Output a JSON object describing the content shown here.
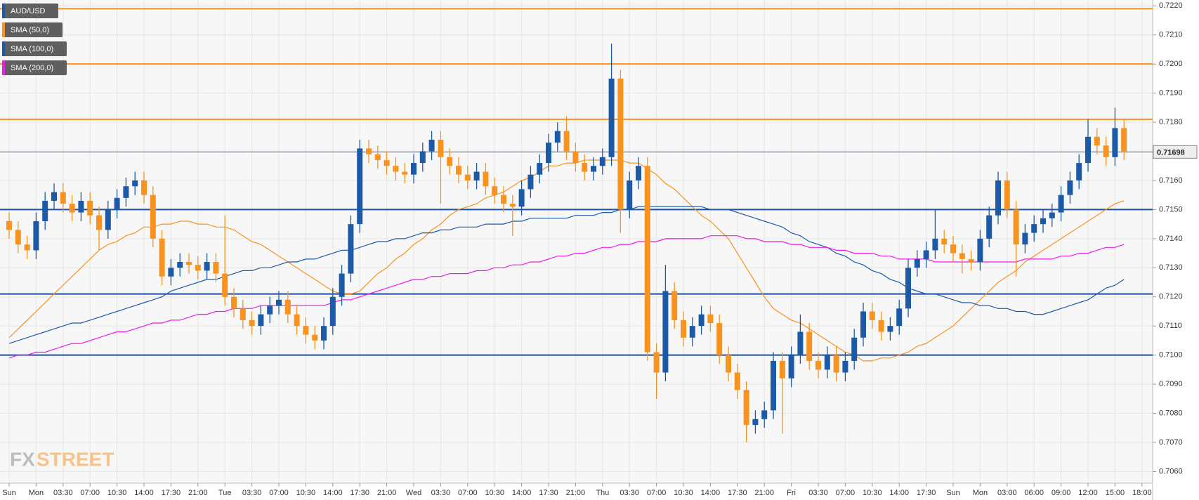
{
  "chart_data": {
    "type": "candlestick",
    "categories": [
      "Sun",
      null,
      null,
      "Mon",
      null,
      null,
      "03:30",
      null,
      null,
      "07:00",
      null,
      null,
      "10:30",
      null,
      null,
      "14:00",
      null,
      null,
      "17:30",
      null,
      null,
      "21:00",
      null,
      null,
      "Tue",
      null,
      null,
      "03:30",
      null,
      null,
      "07:00",
      null,
      null,
      "10:30",
      null,
      null,
      "14:00",
      null,
      null,
      "17:30",
      null,
      null,
      "21:00",
      null,
      null,
      "Wed",
      null,
      null,
      "03:30",
      null,
      null,
      "07:00",
      null,
      null,
      "10:30",
      null,
      null,
      "14:00",
      null,
      null,
      "17:30",
      null,
      null,
      "21:00",
      null,
      null,
      "Thu",
      null,
      null,
      "03:30",
      null,
      null,
      "07:00",
      null,
      null,
      "10:30",
      null,
      null,
      "14:00",
      null,
      null,
      "17:30",
      null,
      null,
      "21:00",
      null,
      null,
      "Fri",
      null,
      null,
      "03:30",
      null,
      null,
      "07:00",
      null,
      null,
      "10:30",
      null,
      null,
      "14:00",
      null,
      null,
      "17:30",
      null,
      null,
      "Sun",
      null,
      null,
      "Mon",
      null,
      null,
      "03:00",
      null,
      null,
      "06:00",
      null,
      null,
      "09:00",
      null,
      null,
      "12:00",
      null,
      null,
      "15:00",
      null,
      null,
      "18:00"
    ],
    "candles": {
      "name": "AUD/USD",
      "color": "#1c5aa8",
      "up_color": "#1c5aa8",
      "down_color": "#f7931e",
      "open": [
        0.7146,
        0.7143,
        0.7138,
        0.7136,
        0.7146,
        0.7153,
        0.7156,
        0.7152,
        0.7149,
        0.7153,
        0.7148,
        0.7143,
        0.715,
        0.7154,
        0.7158,
        0.716,
        0.7155,
        0.714,
        0.7127,
        0.713,
        0.7132,
        0.7131,
        0.7129,
        0.7132,
        0.7128,
        0.712,
        0.7116,
        0.7112,
        0.711,
        0.7114,
        0.7117,
        0.7119,
        0.7114,
        0.711,
        0.7107,
        0.7105,
        0.711,
        0.712,
        0.7128,
        0.7145,
        0.7171,
        0.7169,
        0.7167,
        0.7165,
        0.7163,
        0.7162,
        0.7166,
        0.717,
        0.7174,
        0.7168,
        0.7165,
        0.7162,
        0.716,
        0.7163,
        0.7158,
        0.7155,
        0.7152,
        0.7151,
        0.7157,
        0.7162,
        0.7166,
        0.7173,
        0.7177,
        0.717,
        0.7166,
        0.7163,
        0.7165,
        0.7168,
        0.7195,
        0.715,
        0.716,
        0.7165,
        0.7101,
        0.7094,
        0.7122,
        0.7112,
        0.7106,
        0.711,
        0.7114,
        0.7111,
        0.71,
        0.7094,
        0.7088,
        0.7076,
        0.7078,
        0.7081,
        0.7098,
        0.7092,
        0.71,
        0.7108,
        0.7098,
        0.7095,
        0.71,
        0.7094,
        0.7098,
        0.7106,
        0.7115,
        0.7112,
        0.7108,
        0.711,
        0.7116,
        0.713,
        0.7133,
        0.7136,
        0.714,
        0.7138,
        0.7135,
        0.7133,
        0.7132,
        0.714,
        0.7148,
        0.716,
        0.715,
        0.7138,
        0.7142,
        0.7145,
        0.7147,
        0.7149,
        0.7155,
        0.716,
        0.7166,
        0.7175,
        0.7172,
        0.7168,
        0.7178,
        null,
        null
      ],
      "high": [
        0.7149,
        0.7146,
        0.7141,
        0.7149,
        0.7156,
        0.7159,
        0.7159,
        0.7155,
        0.7156,
        0.7156,
        0.7151,
        0.7153,
        0.7157,
        0.7161,
        0.7163,
        0.7163,
        0.7158,
        0.7143,
        0.7133,
        0.7135,
        0.7135,
        0.7134,
        0.7135,
        0.7135,
        0.7148,
        0.7123,
        0.7119,
        0.7115,
        0.7117,
        0.712,
        0.7122,
        0.7122,
        0.7117,
        0.7113,
        0.711,
        0.7113,
        0.7123,
        0.7131,
        0.7148,
        0.7174,
        0.7174,
        0.7172,
        0.717,
        0.7168,
        0.7166,
        0.7169,
        0.7173,
        0.7177,
        0.7177,
        0.7171,
        0.7168,
        0.7165,
        0.7166,
        0.7166,
        0.7161,
        0.7158,
        0.7155,
        0.716,
        0.7165,
        0.7169,
        0.7176,
        0.718,
        0.7182,
        0.7173,
        0.7169,
        0.7168,
        0.7171,
        0.7207,
        0.7198,
        0.7163,
        0.7168,
        0.7168,
        0.7104,
        0.7131,
        0.7125,
        0.7115,
        0.7113,
        0.7117,
        0.7117,
        0.7114,
        0.7103,
        0.7097,
        0.7091,
        0.7081,
        0.7084,
        0.7101,
        0.7101,
        0.7103,
        0.7114,
        0.7111,
        0.7101,
        0.7103,
        0.7103,
        0.7101,
        0.7109,
        0.7118,
        0.7118,
        0.7115,
        0.7113,
        0.7119,
        0.7133,
        0.7136,
        0.7139,
        0.715,
        0.7143,
        0.7141,
        0.7138,
        0.7136,
        0.7143,
        0.7151,
        0.7163,
        0.7163,
        0.7153,
        0.7145,
        0.7148,
        0.715,
        0.7152,
        0.7158,
        0.7163,
        0.7169,
        0.7181,
        0.7178,
        0.7175,
        0.7185,
        0.7181,
        null,
        null
      ],
      "low": [
        0.714,
        0.7135,
        0.7133,
        0.7133,
        0.7143,
        0.715,
        0.7149,
        0.7146,
        0.7146,
        0.7145,
        0.7136,
        0.714,
        0.7147,
        0.7151,
        0.7155,
        0.7152,
        0.7137,
        0.7124,
        0.7124,
        0.7127,
        0.7128,
        0.7126,
        0.7126,
        0.7125,
        0.7117,
        0.7113,
        0.7109,
        0.7107,
        0.7107,
        0.7111,
        0.7114,
        0.7111,
        0.7107,
        0.7104,
        0.7102,
        0.7102,
        0.7107,
        0.7117,
        0.7125,
        0.7142,
        0.7166,
        0.7164,
        0.7162,
        0.716,
        0.7159,
        0.7159,
        0.7163,
        0.7167,
        0.7152,
        0.7162,
        0.7159,
        0.7157,
        0.7157,
        0.7155,
        0.7152,
        0.7149,
        0.7141,
        0.7148,
        0.7154,
        0.7159,
        0.7163,
        0.717,
        0.7167,
        0.7163,
        0.716,
        0.716,
        0.7162,
        0.7165,
        0.7142,
        0.7147,
        0.7157,
        0.7098,
        0.7085,
        0.7091,
        0.7109,
        0.7103,
        0.7103,
        0.7107,
        0.7108,
        0.7097,
        0.7091,
        0.7085,
        0.707,
        0.7073,
        0.7075,
        0.7078,
        0.7073,
        0.7089,
        0.7097,
        0.7095,
        0.7092,
        0.7092,
        0.7091,
        0.7091,
        0.7095,
        0.7103,
        0.7109,
        0.7105,
        0.7105,
        0.7107,
        0.7113,
        0.7127,
        0.713,
        0.7133,
        0.7135,
        0.7132,
        0.7128,
        0.7129,
        0.7129,
        0.7137,
        0.7145,
        0.7147,
        0.7127,
        0.7135,
        0.7139,
        0.7142,
        0.7144,
        0.7146,
        0.7152,
        0.7157,
        0.7163,
        0.7169,
        0.7165,
        0.7165,
        0.7167,
        null,
        null
      ],
      "close": [
        0.7143,
        0.7138,
        0.7136,
        0.7146,
        0.7153,
        0.7156,
        0.7152,
        0.7149,
        0.7153,
        0.7148,
        0.7143,
        0.715,
        0.7154,
        0.7158,
        0.716,
        0.7155,
        0.714,
        0.7127,
        0.713,
        0.7132,
        0.7131,
        0.7129,
        0.7132,
        0.7128,
        0.712,
        0.7116,
        0.7112,
        0.711,
        0.7114,
        0.7117,
        0.7119,
        0.7114,
        0.711,
        0.7107,
        0.7105,
        0.711,
        0.712,
        0.7128,
        0.7145,
        0.7171,
        0.7169,
        0.7167,
        0.7165,
        0.7163,
        0.7162,
        0.7166,
        0.717,
        0.7174,
        0.7168,
        0.7165,
        0.7162,
        0.716,
        0.7163,
        0.7158,
        0.7155,
        0.7152,
        0.7151,
        0.7157,
        0.7162,
        0.7166,
        0.7173,
        0.7177,
        0.717,
        0.7166,
        0.7163,
        0.7165,
        0.7168,
        0.7195,
        0.715,
        0.716,
        0.7165,
        0.7101,
        0.7094,
        0.7122,
        0.7112,
        0.7106,
        0.711,
        0.7114,
        0.7111,
        0.71,
        0.7094,
        0.7088,
        0.7076,
        0.7078,
        0.7081,
        0.7098,
        0.7092,
        0.71,
        0.7108,
        0.7098,
        0.7095,
        0.71,
        0.7094,
        0.7098,
        0.7106,
        0.7115,
        0.7112,
        0.7108,
        0.711,
        0.7116,
        0.713,
        0.7133,
        0.7136,
        0.714,
        0.7138,
        0.7135,
        0.7133,
        0.7132,
        0.714,
        0.7148,
        0.716,
        0.715,
        0.7138,
        0.7142,
        0.7145,
        0.7147,
        0.7149,
        0.7155,
        0.716,
        0.7166,
        0.7175,
        0.7172,
        0.7168,
        0.7178,
        0.717,
        null,
        null
      ]
    },
    "series": [
      {
        "name": "SMA (50,0)",
        "color": "#f7931e",
        "values": [
          0.7106,
          0.7109,
          0.7112,
          0.7115,
          0.7118,
          0.7121,
          0.7124,
          0.7127,
          0.713,
          0.7133,
          0.7136,
          0.7138,
          0.7139,
          0.7141,
          0.7142,
          0.7144,
          0.7144,
          0.7145,
          0.7145,
          0.7146,
          0.7146,
          0.7145,
          0.7145,
          0.7144,
          0.7144,
          0.7143,
          0.7141,
          0.7139,
          0.7138,
          0.7136,
          0.7134,
          0.7132,
          0.713,
          0.7128,
          0.7126,
          0.7124,
          0.7122,
          0.7121,
          0.7121,
          0.7122,
          0.7125,
          0.7128,
          0.713,
          0.7133,
          0.7135,
          0.7138,
          0.714,
          0.7143,
          0.7145,
          0.7148,
          0.715,
          0.7151,
          0.7152,
          0.7154,
          0.7155,
          0.7156,
          0.7158,
          0.716,
          0.7161,
          0.7163,
          0.7165,
          0.7165,
          0.7166,
          0.7166,
          0.7167,
          0.7167,
          0.7167,
          0.7167,
          0.7167,
          0.7166,
          0.7166,
          0.7164,
          0.7162,
          0.7159,
          0.7157,
          0.7154,
          0.7151,
          0.7148,
          0.7146,
          0.7143,
          0.714,
          0.7135,
          0.713,
          0.7125,
          0.712,
          0.7116,
          0.7114,
          0.7112,
          0.7111,
          0.7109,
          0.7107,
          0.7105,
          0.7103,
          0.7101,
          0.71,
          0.7098,
          0.7098,
          0.7099,
          0.7099,
          0.71,
          0.7101,
          0.7103,
          0.7104,
          0.7106,
          0.7108,
          0.711,
          0.7113,
          0.7116,
          0.7119,
          0.7122,
          0.7125,
          0.7127,
          0.7129,
          0.7132,
          0.7134,
          0.7136,
          0.7138,
          0.714,
          0.7142,
          0.7144,
          0.7146,
          0.7148,
          0.715,
          0.7152,
          0.7153,
          null,
          null
        ]
      },
      {
        "name": "SMA (100,0)",
        "color": "#1c5aa8",
        "values": [
          0.7104,
          0.7105,
          0.7106,
          0.7107,
          0.7108,
          0.7109,
          0.711,
          0.7111,
          0.7111,
          0.7112,
          0.7113,
          0.7114,
          0.7115,
          0.7116,
          0.7117,
          0.7118,
          0.7119,
          0.712,
          0.7122,
          0.7123,
          0.7124,
          0.7125,
          0.7126,
          0.7126,
          0.7127,
          0.7128,
          0.7129,
          0.7129,
          0.713,
          0.713,
          0.7131,
          0.7132,
          0.7132,
          0.7133,
          0.7133,
          0.7134,
          0.7135,
          0.7136,
          0.7136,
          0.7137,
          0.7138,
          0.7139,
          0.7139,
          0.714,
          0.714,
          0.7141,
          0.7142,
          0.7142,
          0.7143,
          0.7143,
          0.7144,
          0.7144,
          0.7144,
          0.7145,
          0.7145,
          0.7145,
          0.7146,
          0.7146,
          0.7147,
          0.7147,
          0.7147,
          0.7147,
          0.7147,
          0.7148,
          0.7148,
          0.7148,
          0.7149,
          0.7149,
          0.715,
          0.715,
          0.7151,
          0.7151,
          0.7151,
          0.7151,
          0.7151,
          0.7151,
          0.7151,
          0.7151,
          0.715,
          0.715,
          0.715,
          0.7149,
          0.7148,
          0.7147,
          0.7146,
          0.7145,
          0.7144,
          0.7142,
          0.7141,
          0.7139,
          0.7138,
          0.7137,
          0.7135,
          0.7134,
          0.7132,
          0.7131,
          0.7129,
          0.7128,
          0.7126,
          0.7125,
          0.7123,
          0.7122,
          0.7121,
          0.7121,
          0.712,
          0.7119,
          0.7118,
          0.7118,
          0.7117,
          0.7117,
          0.7116,
          0.7116,
          0.7115,
          0.7115,
          0.7114,
          0.7114,
          0.7115,
          0.7116,
          0.7117,
          0.7118,
          0.7119,
          0.7121,
          0.7123,
          0.7124,
          0.7126,
          null,
          null
        ]
      },
      {
        "name": "SMA (200,0)",
        "color": "#e81ee8",
        "values": [
          0.7099,
          0.71,
          0.71,
          0.7101,
          0.7101,
          0.7102,
          0.7103,
          0.7104,
          0.7104,
          0.7105,
          0.7106,
          0.7107,
          0.7108,
          0.7108,
          0.7109,
          0.711,
          0.7111,
          0.7111,
          0.7112,
          0.7112,
          0.7113,
          0.7114,
          0.7114,
          0.7115,
          0.7115,
          0.7116,
          0.7116,
          0.7116,
          0.7117,
          0.7117,
          0.7117,
          0.7117,
          0.7117,
          0.7117,
          0.7117,
          0.7117,
          0.7118,
          0.7119,
          0.7119,
          0.712,
          0.7121,
          0.7122,
          0.7123,
          0.7124,
          0.7125,
          0.7126,
          0.7126,
          0.7127,
          0.7127,
          0.7128,
          0.7128,
          0.7128,
          0.7129,
          0.7129,
          0.713,
          0.713,
          0.7131,
          0.7131,
          0.7132,
          0.7132,
          0.7133,
          0.7134,
          0.7134,
          0.7135,
          0.7135,
          0.7136,
          0.7137,
          0.7137,
          0.7138,
          0.7138,
          0.7139,
          0.7139,
          0.7139,
          0.714,
          0.714,
          0.714,
          0.714,
          0.714,
          0.7141,
          0.7141,
          0.7141,
          0.7141,
          0.714,
          0.714,
          0.7139,
          0.7139,
          0.7139,
          0.7138,
          0.7138,
          0.7137,
          0.7137,
          0.7137,
          0.7136,
          0.7136,
          0.7135,
          0.7135,
          0.7135,
          0.7134,
          0.7134,
          0.7133,
          0.7133,
          0.7133,
          0.7133,
          0.7132,
          0.7132,
          0.7132,
          0.7132,
          0.7132,
          0.7132,
          0.7132,
          0.7132,
          0.7132,
          0.7132,
          0.7133,
          0.7133,
          0.7133,
          0.7133,
          0.7134,
          0.7134,
          0.7135,
          0.7135,
          0.7136,
          0.7137,
          0.7137,
          0.7138,
          null,
          null
        ]
      }
    ],
    "levels": [
      {
        "value": 0.7219,
        "color": "#f7931e"
      },
      {
        "value": 0.72,
        "color": "#f7931e"
      },
      {
        "value": 0.7181,
        "color": "#f7931e"
      },
      {
        "value": 0.715,
        "color": "#1c4fa0"
      },
      {
        "value": 0.7121,
        "color": "#1c4fa0"
      },
      {
        "value": 0.71,
        "color": "#1c4fa0"
      }
    ],
    "last_price": 0.71698,
    "ylim": [
      0.7056,
      0.7222
    ],
    "yticks": [
      {
        "value": 0.706,
        "label": "0.7060"
      },
      {
        "value": 0.707,
        "label": "0.7070"
      },
      {
        "value": 0.708,
        "label": "0.7080"
      },
      {
        "value": 0.709,
        "label": "0.7090"
      },
      {
        "value": 0.71,
        "label": "0.7100"
      },
      {
        "value": 0.711,
        "label": "0.7110"
      },
      {
        "value": 0.712,
        "label": "0.7120"
      },
      {
        "value": 0.713,
        "label": "0.7130"
      },
      {
        "value": 0.714,
        "label": "0.7140"
      },
      {
        "value": 0.715,
        "label": "0.7150"
      },
      {
        "value": 0.716,
        "label": "0.7160"
      },
      {
        "value": 0.717,
        "label": "0.7170"
      },
      {
        "value": 0.718,
        "label": "0.7180"
      },
      {
        "value": 0.719,
        "label": "0.7190"
      },
      {
        "value": 0.72,
        "label": "0.7200"
      },
      {
        "value": 0.721,
        "label": "0.7210"
      },
      {
        "value": 0.722,
        "label": "0.7220"
      }
    ],
    "grid": true,
    "legend": "top-left",
    "watermark": [
      "FX",
      "STREET"
    ]
  }
}
